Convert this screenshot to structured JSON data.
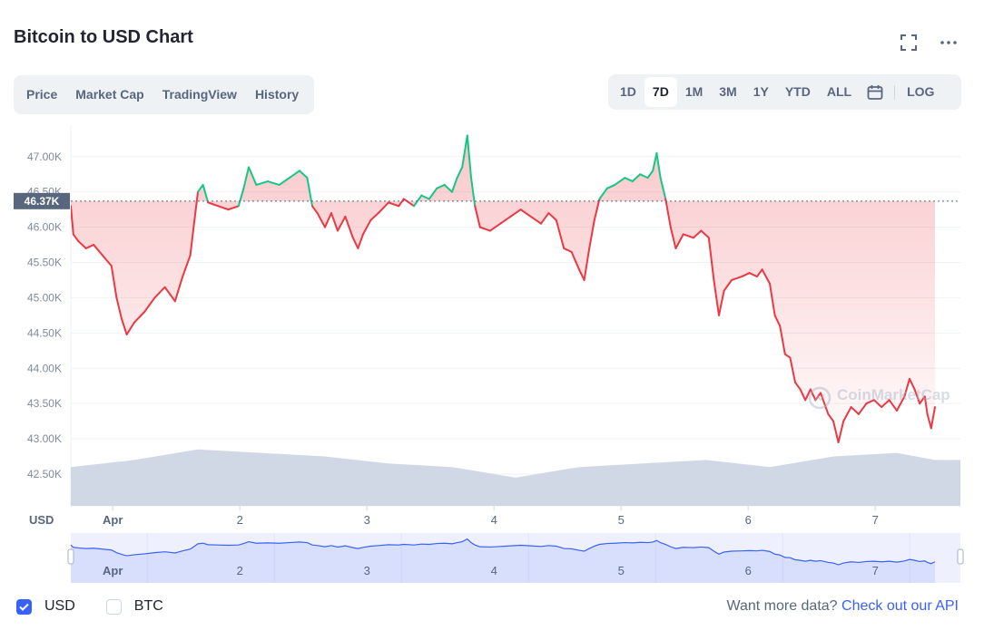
{
  "header": {
    "title": "Bitcoin to USD Chart",
    "fullscreen_icon": "expand-icon",
    "more_icon": "more-dots-icon"
  },
  "chart_tabs": [
    "Price",
    "Market Cap",
    "TradingView",
    "History"
  ],
  "range_tabs": [
    "1D",
    "7D",
    "1M",
    "3M",
    "1Y",
    "YTD",
    "ALL"
  ],
  "range_active": "7D",
  "calendar_icon": "calendar-icon",
  "scale_toggle": "LOG",
  "watermark": "CoinMarketCap",
  "legend": {
    "usd_label": "USD",
    "usd_checked": true,
    "btc_label": "BTC",
    "btc_checked": false
  },
  "footer": {
    "prompt": "Want more data?",
    "link_text": "Check out our API"
  },
  "colors": {
    "up": "#16c784",
    "down": "#ea3943",
    "reference": "#58667e",
    "volume": "#cfd6e4",
    "navigator": "#3861fb"
  },
  "chart_data": {
    "type": "line",
    "y_axis_label": "USD",
    "y_ticks": [
      "42.50K",
      "43.00K",
      "43.50K",
      "44.00K",
      "44.50K",
      "45.00K",
      "45.50K",
      "46.00K",
      "46.50K",
      "47.00K"
    ],
    "ylim": [
      42050,
      47550
    ],
    "x_ticks": [
      "Apr",
      "2",
      "3",
      "4",
      "5",
      "6",
      "7"
    ],
    "x_tick_values": [
      0.33,
      1.33,
      2.33,
      3.33,
      4.33,
      5.33,
      6.33
    ],
    "xlim": [
      0,
      7
    ],
    "reference_price": 46370,
    "reference_label": "46.37K",
    "grid": true,
    "series": [
      {
        "points": [
          [
            0.0,
            46300
          ],
          [
            0.02,
            45900
          ],
          [
            0.06,
            45800
          ],
          [
            0.12,
            45700
          ],
          [
            0.18,
            45750
          ],
          [
            0.25,
            45600
          ],
          [
            0.32,
            45450
          ],
          [
            0.36,
            45000
          ],
          [
            0.4,
            44700
          ],
          [
            0.44,
            44480
          ],
          [
            0.5,
            44650
          ],
          [
            0.58,
            44800
          ],
          [
            0.66,
            45000
          ],
          [
            0.74,
            45150
          ],
          [
            0.82,
            44950
          ],
          [
            0.88,
            45300
          ],
          [
            0.94,
            45600
          ],
          [
            0.98,
            46200
          ],
          [
            1.0,
            46500
          ],
          [
            1.04,
            46600
          ],
          [
            1.08,
            46350
          ],
          [
            1.16,
            46300
          ],
          [
            1.24,
            46250
          ],
          [
            1.32,
            46300
          ],
          [
            1.36,
            46550
          ],
          [
            1.4,
            46850
          ],
          [
            1.46,
            46600
          ],
          [
            1.55,
            46650
          ],
          [
            1.64,
            46600
          ],
          [
            1.72,
            46700
          ],
          [
            1.8,
            46800
          ],
          [
            1.86,
            46700
          ],
          [
            1.9,
            46300
          ],
          [
            1.94,
            46200
          ],
          [
            2.0,
            46000
          ],
          [
            2.05,
            46200
          ],
          [
            2.1,
            45950
          ],
          [
            2.16,
            46150
          ],
          [
            2.22,
            45850
          ],
          [
            2.26,
            45700
          ],
          [
            2.3,
            45900
          ],
          [
            2.36,
            46100
          ],
          [
            2.42,
            46200
          ],
          [
            2.5,
            46350
          ],
          [
            2.58,
            46300
          ],
          [
            2.62,
            46400
          ],
          [
            2.7,
            46300
          ],
          [
            2.76,
            46450
          ],
          [
            2.82,
            46400
          ],
          [
            2.88,
            46550
          ],
          [
            2.94,
            46600
          ],
          [
            3.0,
            46500
          ],
          [
            3.04,
            46700
          ],
          [
            3.08,
            46850
          ],
          [
            3.12,
            47300
          ],
          [
            3.15,
            46700
          ],
          [
            3.18,
            46300
          ],
          [
            3.22,
            46000
          ],
          [
            3.3,
            45950
          ],
          [
            3.38,
            46050
          ],
          [
            3.46,
            46150
          ],
          [
            3.54,
            46250
          ],
          [
            3.62,
            46150
          ],
          [
            3.7,
            46050
          ],
          [
            3.76,
            46200
          ],
          [
            3.82,
            46100
          ],
          [
            3.88,
            45700
          ],
          [
            3.94,
            45650
          ],
          [
            4.0,
            45400
          ],
          [
            4.04,
            45250
          ],
          [
            4.08,
            45700
          ],
          [
            4.12,
            46100
          ],
          [
            4.16,
            46400
          ],
          [
            4.22,
            46550
          ],
          [
            4.28,
            46600
          ],
          [
            4.36,
            46700
          ],
          [
            4.42,
            46650
          ],
          [
            4.48,
            46750
          ],
          [
            4.54,
            46700
          ],
          [
            4.58,
            46800
          ],
          [
            4.61,
            47050
          ],
          [
            4.64,
            46700
          ],
          [
            4.68,
            46400
          ],
          [
            4.72,
            46000
          ],
          [
            4.76,
            45700
          ],
          [
            4.82,
            45900
          ],
          [
            4.9,
            45850
          ],
          [
            4.96,
            45950
          ],
          [
            5.02,
            45850
          ],
          [
            5.06,
            45250
          ],
          [
            5.1,
            44750
          ],
          [
            5.14,
            45100
          ],
          [
            5.2,
            45250
          ],
          [
            5.28,
            45300
          ],
          [
            5.34,
            45350
          ],
          [
            5.4,
            45300
          ],
          [
            5.44,
            45400
          ],
          [
            5.5,
            45200
          ],
          [
            5.54,
            44750
          ],
          [
            5.58,
            44600
          ],
          [
            5.62,
            44200
          ],
          [
            5.66,
            44150
          ],
          [
            5.7,
            43800
          ],
          [
            5.74,
            43700
          ],
          [
            5.78,
            43550
          ],
          [
            5.82,
            43700
          ],
          [
            5.86,
            43550
          ],
          [
            5.9,
            43650
          ],
          [
            5.96,
            43350
          ],
          [
            6.0,
            43250
          ],
          [
            6.04,
            42950
          ],
          [
            6.08,
            43250
          ],
          [
            6.14,
            43450
          ],
          [
            6.2,
            43350
          ],
          [
            6.26,
            43500
          ],
          [
            6.32,
            43550
          ],
          [
            6.38,
            43450
          ],
          [
            6.44,
            43550
          ],
          [
            6.5,
            43400
          ],
          [
            6.56,
            43600
          ],
          [
            6.6,
            43850
          ],
          [
            6.64,
            43700
          ],
          [
            6.68,
            43500
          ],
          [
            6.72,
            43600
          ],
          [
            6.74,
            43350
          ],
          [
            6.77,
            43150
          ],
          [
            6.8,
            43450
          ]
        ]
      }
    ],
    "volume": [
      [
        0.0,
        42.6
      ],
      [
        0.5,
        42.7
      ],
      [
        1.0,
        42.85
      ],
      [
        1.5,
        42.8
      ],
      [
        2.0,
        42.75
      ],
      [
        2.5,
        42.65
      ],
      [
        3.0,
        42.6
      ],
      [
        3.5,
        42.45
      ],
      [
        4.0,
        42.6
      ],
      [
        4.5,
        42.65
      ],
      [
        5.0,
        42.7
      ],
      [
        5.5,
        42.6
      ],
      [
        6.0,
        42.75
      ],
      [
        6.5,
        42.8
      ],
      [
        6.8,
        42.7
      ]
    ]
  }
}
